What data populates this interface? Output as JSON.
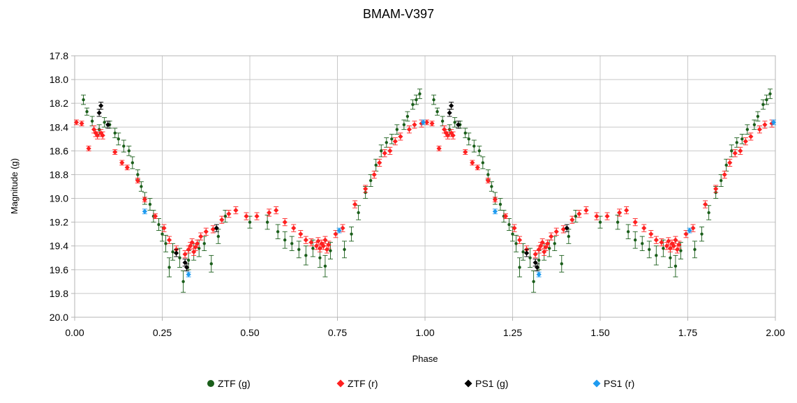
{
  "chart_data": {
    "type": "scatter",
    "title": "BMAM-V397",
    "xlabel": "Phase",
    "ylabel": "Magnitude (g)",
    "xlim": [
      0,
      2
    ],
    "ylim": [
      17.8,
      20.0
    ],
    "y_inverted": true,
    "grid": true,
    "legend_position": "bottom",
    "x_ticks": [
      "0.00",
      "0.25",
      "0.50",
      "0.75",
      "1.00",
      "1.25",
      "1.50",
      "1.75",
      "2.00"
    ],
    "y_ticks": [
      "17.8",
      "18.0",
      "18.2",
      "18.4",
      "18.6",
      "18.8",
      "19.0",
      "19.2",
      "19.4",
      "19.6",
      "19.8",
      "20.0"
    ],
    "series": [
      {
        "name": "ZTF (g)",
        "color": "#1a5e1a",
        "marker": "circle",
        "points": [
          [
            0.025,
            18.17,
            0.04
          ],
          [
            0.035,
            18.27,
            0.03
          ],
          [
            0.05,
            18.35,
            0.04
          ],
          [
            0.07,
            18.42,
            0.04
          ],
          [
            0.085,
            18.36,
            0.04
          ],
          [
            0.1,
            18.38,
            0.03
          ],
          [
            0.115,
            18.45,
            0.04
          ],
          [
            0.125,
            18.5,
            0.05
          ],
          [
            0.14,
            18.56,
            0.05
          ],
          [
            0.155,
            18.6,
            0.04
          ],
          [
            0.165,
            18.7,
            0.05
          ],
          [
            0.18,
            18.8,
            0.04
          ],
          [
            0.19,
            18.9,
            0.04
          ],
          [
            0.2,
            19.0,
            0.05
          ],
          [
            0.215,
            19.05,
            0.05
          ],
          [
            0.225,
            19.15,
            0.05
          ],
          [
            0.24,
            19.22,
            0.05
          ],
          [
            0.25,
            19.3,
            0.06
          ],
          [
            0.26,
            19.38,
            0.07
          ],
          [
            0.27,
            19.58,
            0.08
          ],
          [
            0.28,
            19.45,
            0.07
          ],
          [
            0.3,
            19.5,
            0.08
          ],
          [
            0.31,
            19.7,
            0.09
          ],
          [
            0.325,
            19.52,
            0.08
          ],
          [
            0.34,
            19.45,
            0.07
          ],
          [
            0.355,
            19.42,
            0.07
          ],
          [
            0.37,
            19.38,
            0.06
          ],
          [
            0.39,
            19.55,
            0.07
          ],
          [
            0.41,
            19.32,
            0.06
          ],
          [
            0.43,
            19.15,
            0.05
          ],
          [
            0.5,
            19.2,
            0.05
          ],
          [
            0.55,
            19.2,
            0.06
          ],
          [
            0.58,
            19.28,
            0.06
          ],
          [
            0.6,
            19.35,
            0.07
          ],
          [
            0.62,
            19.38,
            0.06
          ],
          [
            0.64,
            19.43,
            0.07
          ],
          [
            0.66,
            19.48,
            0.08
          ],
          [
            0.68,
            19.42,
            0.07
          ],
          [
            0.7,
            19.5,
            0.08
          ],
          [
            0.715,
            19.57,
            0.09
          ],
          [
            0.73,
            19.44,
            0.07
          ],
          [
            0.77,
            19.43,
            0.07
          ],
          [
            0.79,
            19.3,
            0.06
          ],
          [
            0.81,
            19.12,
            0.06
          ],
          [
            0.83,
            18.95,
            0.05
          ],
          [
            0.845,
            18.85,
            0.05
          ],
          [
            0.86,
            18.72,
            0.05
          ],
          [
            0.875,
            18.6,
            0.05
          ],
          [
            0.89,
            18.53,
            0.04
          ],
          [
            0.905,
            18.5,
            0.04
          ],
          [
            0.92,
            18.42,
            0.04
          ],
          [
            0.94,
            18.38,
            0.04
          ],
          [
            0.95,
            18.31,
            0.04
          ],
          [
            0.965,
            18.21,
            0.04
          ],
          [
            0.975,
            18.17,
            0.04
          ],
          [
            0.985,
            18.12,
            0.04
          ]
        ]
      },
      {
        "name": "ZTF (r)",
        "color": "#ff2020",
        "marker": "diamond",
        "points": [
          [
            0.005,
            18.36,
            0.02
          ],
          [
            0.02,
            18.37,
            0.02
          ],
          [
            0.04,
            18.58,
            0.02
          ],
          [
            0.055,
            18.42,
            0.03
          ],
          [
            0.06,
            18.45,
            0.03
          ],
          [
            0.065,
            18.47,
            0.03
          ],
          [
            0.075,
            18.45,
            0.03
          ],
          [
            0.08,
            18.47,
            0.03
          ],
          [
            0.115,
            18.61,
            0.02
          ],
          [
            0.135,
            18.7,
            0.02
          ],
          [
            0.15,
            18.74,
            0.02
          ],
          [
            0.18,
            18.85,
            0.02
          ],
          [
            0.2,
            19.01,
            0.02
          ],
          [
            0.23,
            19.15,
            0.02
          ],
          [
            0.255,
            19.25,
            0.03
          ],
          [
            0.27,
            19.35,
            0.03
          ],
          [
            0.29,
            19.43,
            0.03
          ],
          [
            0.315,
            19.47,
            0.03
          ],
          [
            0.325,
            19.43,
            0.03
          ],
          [
            0.33,
            19.4,
            0.03
          ],
          [
            0.335,
            19.37,
            0.03
          ],
          [
            0.34,
            19.45,
            0.03
          ],
          [
            0.345,
            19.41,
            0.03
          ],
          [
            0.35,
            19.38,
            0.03
          ],
          [
            0.36,
            19.32,
            0.03
          ],
          [
            0.375,
            19.28,
            0.03
          ],
          [
            0.395,
            19.26,
            0.03
          ],
          [
            0.42,
            19.18,
            0.03
          ],
          [
            0.44,
            19.13,
            0.03
          ],
          [
            0.46,
            19.1,
            0.03
          ],
          [
            0.49,
            19.15,
            0.03
          ],
          [
            0.52,
            19.15,
            0.03
          ],
          [
            0.555,
            19.12,
            0.03
          ],
          [
            0.575,
            19.1,
            0.03
          ],
          [
            0.6,
            19.2,
            0.03
          ],
          [
            0.625,
            19.25,
            0.03
          ],
          [
            0.645,
            19.3,
            0.03
          ],
          [
            0.66,
            19.35,
            0.03
          ],
          [
            0.675,
            19.37,
            0.03
          ],
          [
            0.69,
            19.4,
            0.03
          ],
          [
            0.695,
            19.36,
            0.03
          ],
          [
            0.7,
            19.42,
            0.03
          ],
          [
            0.705,
            19.38,
            0.03
          ],
          [
            0.71,
            19.4,
            0.03
          ],
          [
            0.715,
            19.35,
            0.03
          ],
          [
            0.72,
            19.43,
            0.03
          ],
          [
            0.725,
            19.39,
            0.03
          ],
          [
            0.745,
            19.3,
            0.03
          ],
          [
            0.765,
            19.25,
            0.03
          ],
          [
            0.8,
            19.05,
            0.03
          ],
          [
            0.83,
            18.92,
            0.03
          ],
          [
            0.855,
            18.8,
            0.03
          ],
          [
            0.87,
            18.7,
            0.03
          ],
          [
            0.885,
            18.62,
            0.03
          ],
          [
            0.9,
            18.6,
            0.03
          ],
          [
            0.915,
            18.52,
            0.03
          ],
          [
            0.93,
            18.48,
            0.03
          ],
          [
            0.955,
            18.42,
            0.03
          ],
          [
            0.97,
            18.38,
            0.03
          ],
          [
            0.99,
            18.37,
            0.03
          ]
        ]
      },
      {
        "name": "PS1 (g)",
        "color": "#000000",
        "marker": "diamond",
        "points": [
          [
            0.07,
            18.28,
            0.03
          ],
          [
            0.075,
            18.22,
            0.03
          ],
          [
            0.095,
            18.38,
            0.03
          ],
          [
            0.29,
            19.46,
            0.03
          ],
          [
            0.315,
            19.54,
            0.03
          ],
          [
            0.32,
            19.58,
            0.03
          ],
          [
            0.405,
            19.25,
            0.03
          ]
        ]
      },
      {
        "name": "PS1 (r)",
        "color": "#1e9bf0",
        "marker": "diamond",
        "points": [
          [
            0.2,
            19.11,
            0.02
          ],
          [
            0.325,
            19.64,
            0.02
          ],
          [
            0.755,
            19.27,
            0.02
          ],
          [
            0.995,
            18.36,
            0.02
          ]
        ]
      }
    ]
  }
}
